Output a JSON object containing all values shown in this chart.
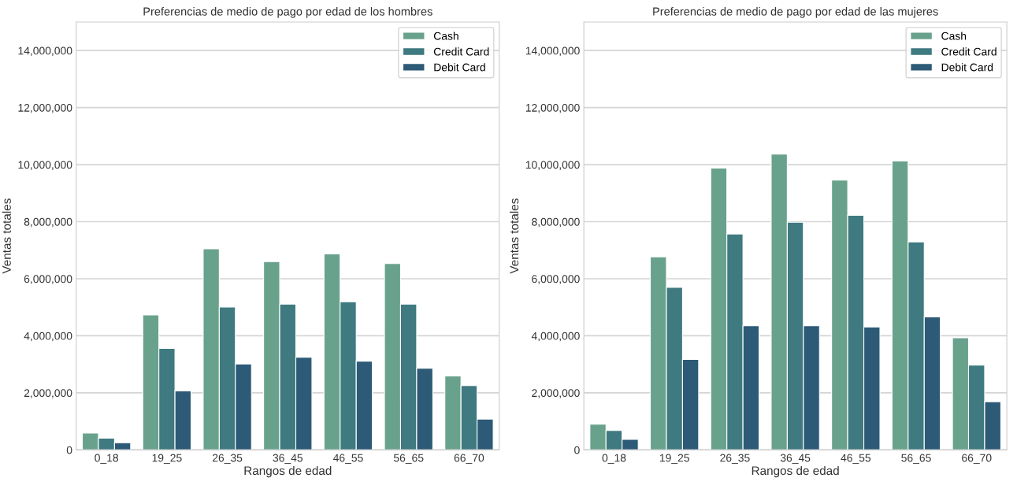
{
  "chart_data": [
    {
      "type": "bar",
      "title": "Preferencias de medio de pago por edad de los hombres",
      "xlabel": "Rangos de edad",
      "ylabel": "Ventas totales",
      "categories": [
        "0_18",
        "19_25",
        "26_35",
        "36_45",
        "46_55",
        "56_65",
        "66_70"
      ],
      "series": [
        {
          "name": "Cash",
          "color": "#69a28c",
          "values": [
            590000,
            4730000,
            7050000,
            6600000,
            6870000,
            6530000,
            2590000
          ]
        },
        {
          "name": "Credit Card",
          "color": "#3e7a80",
          "values": [
            410000,
            3560000,
            5010000,
            5110000,
            5190000,
            5110000,
            2250000
          ]
        },
        {
          "name": "Debit Card",
          "color": "#2c5a77",
          "values": [
            250000,
            2070000,
            3010000,
            3250000,
            3110000,
            2860000,
            1080000
          ]
        }
      ],
      "ylim": [
        0,
        15000000
      ],
      "yticks": [
        {
          "value": 0,
          "label": "0"
        },
        {
          "value": 2000000,
          "label": "2,000,000"
        },
        {
          "value": 4000000,
          "label": "4,000,000"
        },
        {
          "value": 6000000,
          "label": "6,000,000"
        },
        {
          "value": 8000000,
          "label": "8,000,000"
        },
        {
          "value": 10000000,
          "label": "10,000,000"
        },
        {
          "value": 12000000,
          "label": "12,000,000"
        },
        {
          "value": 14000000,
          "label": "14,000,000"
        }
      ],
      "grid": "y",
      "legend": "top right"
    },
    {
      "type": "bar",
      "title": "Preferencias de medio de pago por edad de las mujeres",
      "xlabel": "Rangos de edad",
      "ylabel": "Ventas totales",
      "categories": [
        "0_18",
        "19_25",
        "26_35",
        "36_45",
        "46_55",
        "56_65",
        "66_70"
      ],
      "series": [
        {
          "name": "Cash",
          "color": "#69a28c",
          "values": [
            900000,
            6770000,
            9880000,
            10370000,
            9460000,
            10130000,
            3930000
          ]
        },
        {
          "name": "Credit Card",
          "color": "#3e7a80",
          "values": [
            680000,
            5700000,
            7570000,
            7980000,
            8220000,
            7290000,
            2970000
          ]
        },
        {
          "name": "Debit Card",
          "color": "#2c5a77",
          "values": [
            370000,
            3170000,
            4350000,
            4350000,
            4310000,
            4660000,
            1690000
          ]
        }
      ],
      "ylim": [
        0,
        15000000
      ],
      "yticks": [
        {
          "value": 0,
          "label": "0"
        },
        {
          "value": 2000000,
          "label": "2,000,000"
        },
        {
          "value": 4000000,
          "label": "4,000,000"
        },
        {
          "value": 6000000,
          "label": "6,000,000"
        },
        {
          "value": 8000000,
          "label": "8,000,000"
        },
        {
          "value": 10000000,
          "label": "10,000,000"
        },
        {
          "value": 12000000,
          "label": "12,000,000"
        },
        {
          "value": 14000000,
          "label": "14,000,000"
        }
      ],
      "grid": "y",
      "legend": "top right"
    }
  ]
}
